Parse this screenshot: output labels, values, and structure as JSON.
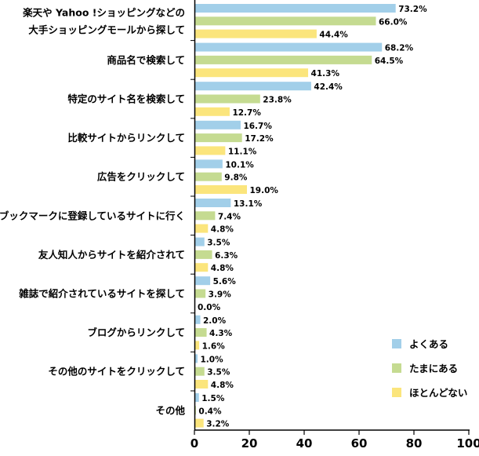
{
  "chart_data": {
    "type": "bar",
    "orientation": "horizontal",
    "title": "",
    "xlabel": "",
    "ylabel": "",
    "xlim": [
      0,
      100
    ],
    "xticks": [
      "0",
      "20",
      "40",
      "60",
      "80",
      "100"
    ],
    "grid": false,
    "legend_position": "bottom-right",
    "value_suffix": "%",
    "categories": [
      [
        "楽天や Yahoo !ショッピングなどの",
        "大手ショッピングモールから探して"
      ],
      [
        "商品名で検索して"
      ],
      [
        "特定のサイト名を検索して"
      ],
      [
        "比較サイトからリンクして"
      ],
      [
        "広告をクリックして"
      ],
      [
        "ブックマークに登録しているサイトに行く"
      ],
      [
        "友人知人からサイトを紹介されて"
      ],
      [
        "雑誌で紹介されているサイトを探して"
      ],
      [
        "ブログからリンクして"
      ],
      [
        "その他のサイトをクリックして"
      ],
      [
        "その他"
      ]
    ],
    "series": [
      {
        "name": "よくある",
        "color": "#a2cfe9",
        "values": [
          73.2,
          68.2,
          42.4,
          16.7,
          10.1,
          13.1,
          3.5,
          5.6,
          2.0,
          1.0,
          1.5
        ],
        "labels": [
          "73.2%",
          "68.2%",
          "42.4%",
          "16.7%",
          "10.1%",
          "13.1%",
          "3.5%",
          "5.6%",
          "2.0%",
          "1.0%",
          "1.5%"
        ]
      },
      {
        "name": "たまにある",
        "color": "#c5db91",
        "values": [
          66.0,
          64.5,
          23.8,
          17.2,
          9.8,
          7.4,
          6.3,
          3.9,
          4.3,
          3.5,
          0.4
        ],
        "labels": [
          "66.0%",
          "64.5%",
          "23.8%",
          "17.2%",
          "9.8%",
          "7.4%",
          "6.3%",
          "3.9%",
          "4.3%",
          "3.5%",
          "0.4%"
        ]
      },
      {
        "name": "ほとんどない",
        "color": "#fbe57c",
        "values": [
          44.4,
          41.3,
          12.7,
          11.1,
          19.0,
          4.8,
          4.8,
          0.0,
          1.6,
          4.8,
          3.2
        ],
        "labels": [
          "44.4%",
          "41.3%",
          "12.7%",
          "11.1%",
          "19.0%",
          "4.8%",
          "4.8%",
          "0.0%",
          "1.6%",
          "4.8%",
          "3.2%"
        ]
      }
    ]
  },
  "colors": {
    "axis": "#000000",
    "text": "#000000"
  }
}
